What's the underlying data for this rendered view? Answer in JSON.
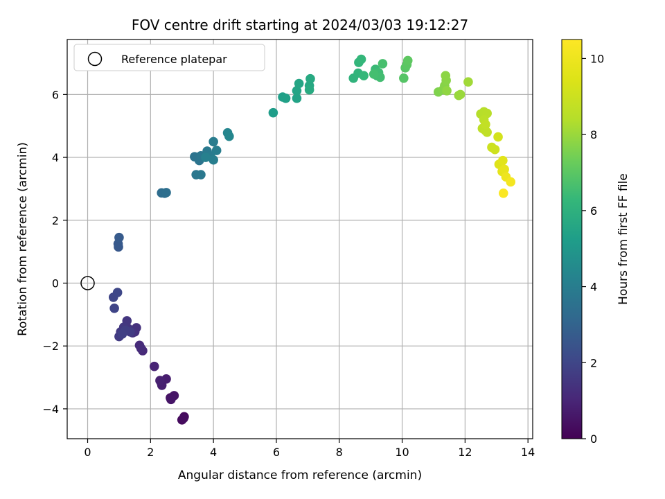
{
  "chart_data": {
    "type": "scatter",
    "title": "FOV centre drift starting at 2024/03/03 19:12:27",
    "xlabel": "Angular distance from reference (arcmin)",
    "ylabel": "Rotation from reference (arcmin)",
    "xlim": [
      -0.65,
      14.15
    ],
    "ylim": [
      -4.95,
      7.75
    ],
    "xticks": [
      0,
      2,
      4,
      6,
      8,
      10,
      12,
      14
    ],
    "yticks": [
      -4,
      -2,
      0,
      2,
      4,
      6
    ],
    "grid": true,
    "legend": {
      "placement": "upper-left",
      "entries": [
        "Reference platepar"
      ]
    },
    "reference_point": {
      "x": 0,
      "y": 0,
      "label": "Reference platepar"
    },
    "colorbar": {
      "label": "Hours from first FF file",
      "colormap": "viridis",
      "range": [
        0,
        10.5
      ],
      "ticks": [
        0,
        2,
        4,
        6,
        8,
        10
      ]
    },
    "series": [
      {
        "color_value": "hours",
        "points": [
          {
            "x": 3.07,
            "y": -4.25,
            "c": 0.2
          },
          {
            "x": 3.0,
            "y": -4.35,
            "c": 0.25
          },
          {
            "x": 3.05,
            "y": -4.3,
            "c": 0.3
          },
          {
            "x": 2.63,
            "y": -3.65,
            "c": 0.45
          },
          {
            "x": 2.75,
            "y": -3.58,
            "c": 0.5
          },
          {
            "x": 2.65,
            "y": -3.7,
            "c": 0.55
          },
          {
            "x": 2.33,
            "y": -3.15,
            "c": 0.7
          },
          {
            "x": 2.5,
            "y": -3.05,
            "c": 0.75
          },
          {
            "x": 2.36,
            "y": -3.25,
            "c": 0.8
          },
          {
            "x": 2.3,
            "y": -3.1,
            "c": 0.85
          },
          {
            "x": 2.12,
            "y": -2.65,
            "c": 0.95
          },
          {
            "x": 1.75,
            "y": -2.15,
            "c": 1.1
          },
          {
            "x": 1.65,
            "y": -1.98,
            "c": 1.15
          },
          {
            "x": 1.7,
            "y": -2.08,
            "c": 1.2
          },
          {
            "x": 1.5,
            "y": -1.55,
            "c": 1.3
          },
          {
            "x": 1.55,
            "y": -1.42,
            "c": 1.35
          },
          {
            "x": 1.43,
            "y": -1.58,
            "c": 1.4
          },
          {
            "x": 1.3,
            "y": -1.45,
            "c": 1.45
          },
          {
            "x": 1.25,
            "y": -1.2,
            "c": 1.5
          },
          {
            "x": 1.15,
            "y": -1.4,
            "c": 1.55
          },
          {
            "x": 1.05,
            "y": -1.55,
            "c": 1.6
          },
          {
            "x": 1.0,
            "y": -1.7,
            "c": 1.65
          },
          {
            "x": 1.35,
            "y": -1.55,
            "c": 1.7
          },
          {
            "x": 1.2,
            "y": -1.5,
            "c": 1.75
          },
          {
            "x": 1.1,
            "y": -1.62,
            "c": 1.8
          },
          {
            "x": 0.85,
            "y": -0.8,
            "c": 1.95
          },
          {
            "x": 0.82,
            "y": -0.45,
            "c": 2.0
          },
          {
            "x": 0.95,
            "y": -0.3,
            "c": 2.05
          },
          {
            "x": 0.98,
            "y": 1.15,
            "c": 2.6
          },
          {
            "x": 0.97,
            "y": 1.25,
            "c": 2.65
          },
          {
            "x": 1.0,
            "y": 1.45,
            "c": 2.7
          },
          {
            "x": 2.35,
            "y": 2.87,
            "c": 3.35
          },
          {
            "x": 2.45,
            "y": 2.86,
            "c": 3.4
          },
          {
            "x": 2.5,
            "y": 2.88,
            "c": 3.45
          },
          {
            "x": 3.4,
            "y": 4.02,
            "c": 3.6
          },
          {
            "x": 3.55,
            "y": 3.9,
            "c": 3.65
          },
          {
            "x": 3.6,
            "y": 4.05,
            "c": 3.7
          },
          {
            "x": 3.45,
            "y": 3.45,
            "c": 3.75
          },
          {
            "x": 3.6,
            "y": 3.45,
            "c": 3.8
          },
          {
            "x": 3.8,
            "y": 4.2,
            "c": 3.85
          },
          {
            "x": 3.9,
            "y": 4.05,
            "c": 3.9
          },
          {
            "x": 4.0,
            "y": 4.5,
            "c": 3.95
          },
          {
            "x": 4.1,
            "y": 4.22,
            "c": 4.0
          },
          {
            "x": 4.0,
            "y": 3.92,
            "c": 4.05
          },
          {
            "x": 3.75,
            "y": 4.0,
            "c": 4.1
          },
          {
            "x": 4.45,
            "y": 4.78,
            "c": 4.3
          },
          {
            "x": 4.5,
            "y": 4.67,
            "c": 4.35
          },
          {
            "x": 5.9,
            "y": 5.42,
            "c": 5.2
          },
          {
            "x": 6.2,
            "y": 5.92,
            "c": 5.3
          },
          {
            "x": 6.3,
            "y": 5.88,
            "c": 5.35
          },
          {
            "x": 6.65,
            "y": 5.88,
            "c": 5.45
          },
          {
            "x": 6.65,
            "y": 6.12,
            "c": 5.5
          },
          {
            "x": 6.72,
            "y": 6.35,
            "c": 5.55
          },
          {
            "x": 7.05,
            "y": 6.28,
            "c": 5.65
          },
          {
            "x": 7.08,
            "y": 6.5,
            "c": 5.7
          },
          {
            "x": 7.05,
            "y": 6.15,
            "c": 5.75
          },
          {
            "x": 8.45,
            "y": 6.52,
            "c": 6.1
          },
          {
            "x": 8.6,
            "y": 6.68,
            "c": 6.15
          },
          {
            "x": 8.62,
            "y": 7.02,
            "c": 6.2
          },
          {
            "x": 8.7,
            "y": 7.12,
            "c": 6.25
          },
          {
            "x": 8.78,
            "y": 6.6,
            "c": 6.3
          },
          {
            "x": 9.15,
            "y": 6.8,
            "c": 6.4
          },
          {
            "x": 9.2,
            "y": 6.6,
            "c": 6.45
          },
          {
            "x": 9.25,
            "y": 6.7,
            "c": 6.5
          },
          {
            "x": 9.3,
            "y": 6.55,
            "c": 6.55
          },
          {
            "x": 9.1,
            "y": 6.65,
            "c": 6.6
          },
          {
            "x": 9.38,
            "y": 6.98,
            "c": 6.65
          },
          {
            "x": 10.05,
            "y": 6.52,
            "c": 6.9
          },
          {
            "x": 10.1,
            "y": 6.85,
            "c": 6.95
          },
          {
            "x": 10.15,
            "y": 6.95,
            "c": 7.0
          },
          {
            "x": 10.18,
            "y": 7.08,
            "c": 7.05
          },
          {
            "x": 11.15,
            "y": 6.08,
            "c": 7.6
          },
          {
            "x": 11.3,
            "y": 6.15,
            "c": 7.65
          },
          {
            "x": 11.35,
            "y": 6.28,
            "c": 7.7
          },
          {
            "x": 11.4,
            "y": 6.45,
            "c": 7.75
          },
          {
            "x": 11.38,
            "y": 6.6,
            "c": 7.8
          },
          {
            "x": 11.42,
            "y": 6.12,
            "c": 7.85
          },
          {
            "x": 11.8,
            "y": 5.97,
            "c": 7.95
          },
          {
            "x": 11.85,
            "y": 6.0,
            "c": 8.0
          },
          {
            "x": 12.1,
            "y": 6.4,
            "c": 8.1
          },
          {
            "x": 12.5,
            "y": 5.38,
            "c": 8.4
          },
          {
            "x": 12.6,
            "y": 5.45,
            "c": 8.45
          },
          {
            "x": 12.7,
            "y": 5.4,
            "c": 8.5
          },
          {
            "x": 12.6,
            "y": 5.2,
            "c": 8.55
          },
          {
            "x": 12.55,
            "y": 4.92,
            "c": 8.6
          },
          {
            "x": 12.65,
            "y": 4.85,
            "c": 8.65
          },
          {
            "x": 12.7,
            "y": 4.8,
            "c": 8.7
          },
          {
            "x": 12.65,
            "y": 5.05,
            "c": 8.75
          },
          {
            "x": 12.85,
            "y": 4.32,
            "c": 9.0
          },
          {
            "x": 12.95,
            "y": 4.25,
            "c": 9.05
          },
          {
            "x": 13.05,
            "y": 4.65,
            "c": 9.2
          },
          {
            "x": 13.08,
            "y": 3.78,
            "c": 9.5
          },
          {
            "x": 13.2,
            "y": 3.9,
            "c": 9.6
          },
          {
            "x": 13.18,
            "y": 3.55,
            "c": 9.7
          },
          {
            "x": 13.25,
            "y": 3.62,
            "c": 9.8
          },
          {
            "x": 13.3,
            "y": 3.38,
            "c": 10.0
          },
          {
            "x": 13.45,
            "y": 3.22,
            "c": 10.2
          },
          {
            "x": 13.22,
            "y": 2.86,
            "c": 10.4
          }
        ]
      }
    ]
  }
}
